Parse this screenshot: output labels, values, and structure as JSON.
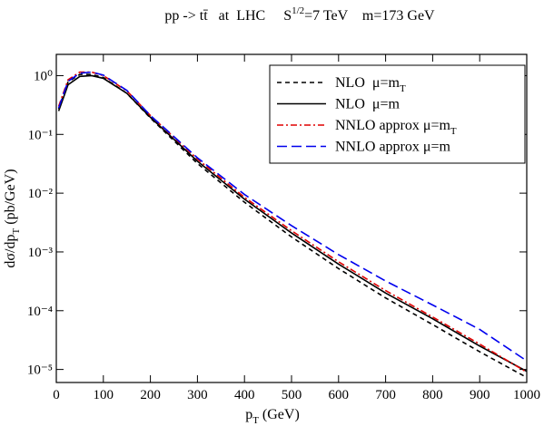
{
  "chart_data": {
    "type": "line",
    "title": [
      {
        "text": "pp -> tt̄   at  LHC     S"
      },
      {
        "text": "1/2",
        "shift": "sup"
      },
      {
        "text": "=7 TeV    m=173 GeV"
      }
    ],
    "xlabel": [
      {
        "text": "p"
      },
      {
        "text": "T",
        "shift": "sub"
      },
      {
        "text": " (GeV)"
      }
    ],
    "ylabel": [
      {
        "text": "dσ/dp"
      },
      {
        "text": "T",
        "shift": "sub"
      },
      {
        "text": " (pb/GeV)"
      }
    ],
    "xlim": [
      0,
      1000
    ],
    "xticks": [
      0,
      100,
      200,
      300,
      400,
      500,
      600,
      700,
      800,
      900,
      1000
    ],
    "ylim": [
      6e-06,
      2.3
    ],
    "ylog": true,
    "yticks": [
      {
        "value": 1,
        "label": "10⁰"
      },
      {
        "value": 0.1,
        "label": "10⁻¹"
      },
      {
        "value": 0.01,
        "label": "10⁻²"
      },
      {
        "value": 0.001,
        "label": "10⁻³"
      },
      {
        "value": 0.0001,
        "label": "10⁻⁴"
      },
      {
        "value": 1e-05,
        "label": "10⁻⁵"
      }
    ],
    "legend": "upper right",
    "x": [
      5,
      25,
      50,
      75,
      100,
      150,
      200,
      300,
      400,
      500,
      600,
      700,
      800,
      900,
      1000
    ],
    "series": [
      {
        "name": [
          {
            "text": "NLO  μ=m"
          },
          {
            "text": "T",
            "shift": "sub"
          }
        ],
        "color": "#000000",
        "style": "dashed",
        "values": [
          0.27,
          0.78,
          1.05,
          1.05,
          0.93,
          0.5,
          0.19,
          0.032,
          0.007,
          0.0018,
          0.00052,
          0.000165,
          5.8e-05,
          2e-05,
          7.3e-06
        ]
      },
      {
        "name": [
          {
            "text": "NLO  μ=m"
          }
        ],
        "color": "#000000",
        "style": "solid",
        "values": [
          0.25,
          0.7,
          0.97,
          1.0,
          0.9,
          0.5,
          0.195,
          0.035,
          0.0079,
          0.0021,
          0.00062,
          0.0002,
          7.3e-05,
          2.5e-05,
          9.3e-06
        ]
      },
      {
        "name": [
          {
            "text": "NNLO approx μ=m"
          },
          {
            "text": "T",
            "shift": "sub"
          }
        ],
        "color": "#e00000",
        "style": "dashdot",
        "values": [
          0.3,
          0.85,
          1.15,
          1.15,
          1.0,
          0.55,
          0.21,
          0.038,
          0.0085,
          0.0023,
          0.00068,
          0.00022,
          7.8e-05,
          2.7e-05,
          9e-06
        ]
      },
      {
        "name": [
          {
            "text": "NNLO approx μ=m"
          }
        ],
        "color": "#0000ee",
        "style": "longdash",
        "values": [
          0.28,
          0.8,
          1.1,
          1.15,
          1.02,
          0.56,
          0.21,
          0.04,
          0.0095,
          0.0028,
          0.0009,
          0.00032,
          0.000125,
          4.8e-05,
          1.4e-05
        ]
      }
    ]
  }
}
